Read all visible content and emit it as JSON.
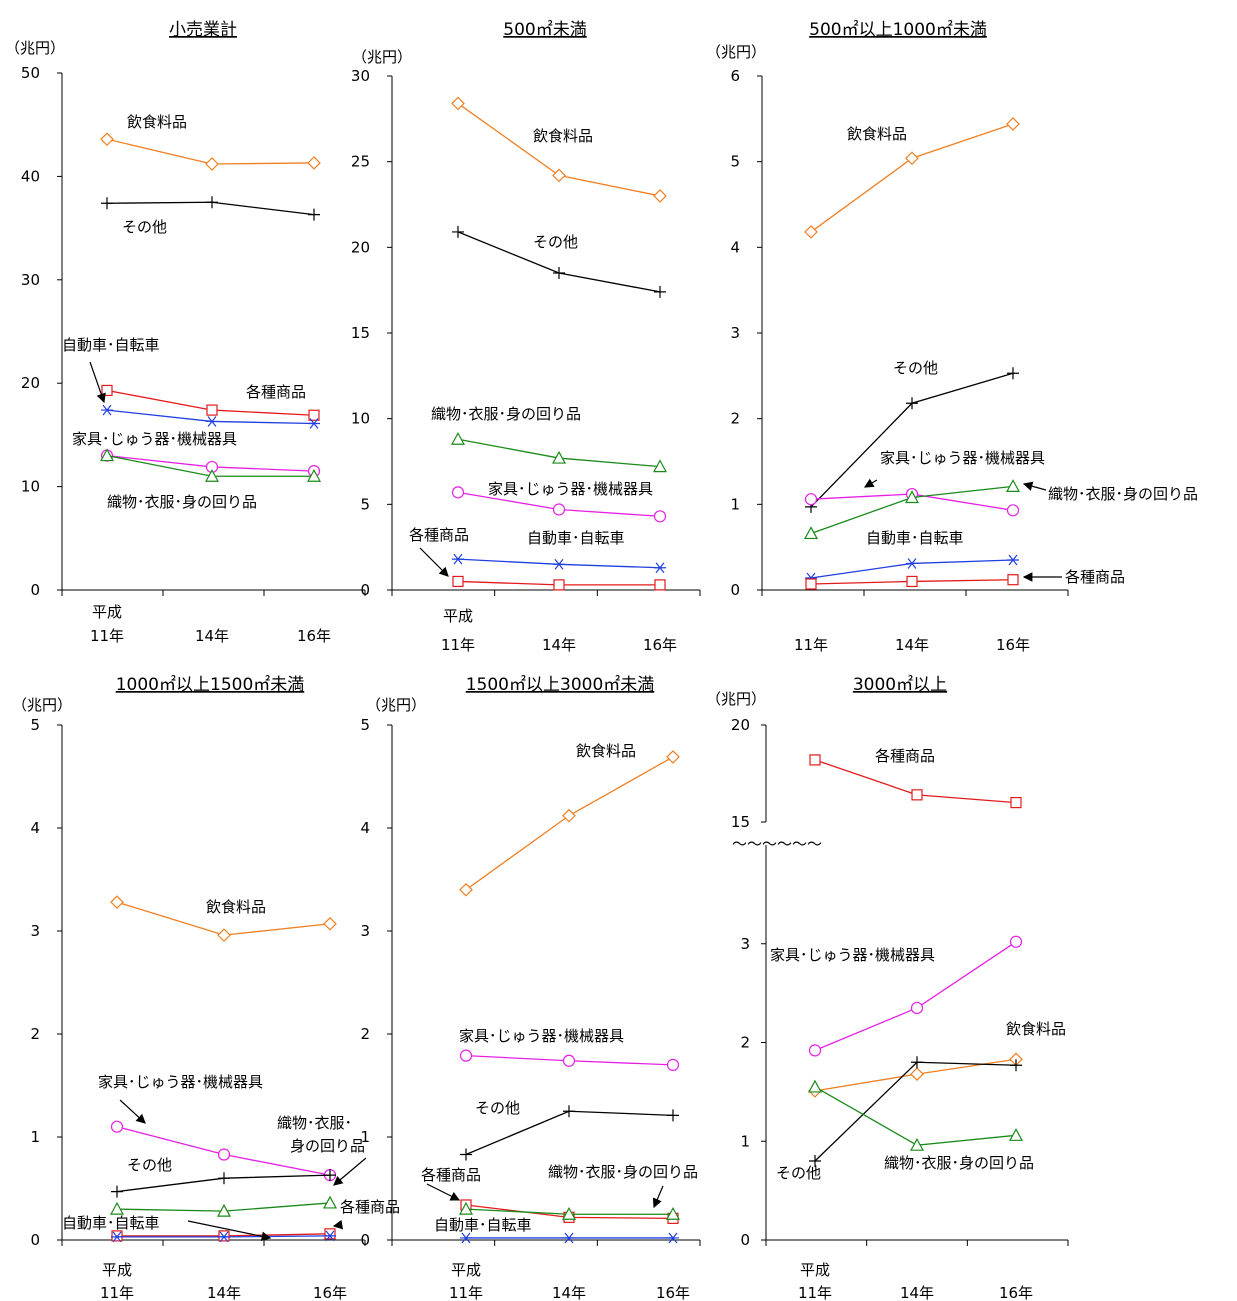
{
  "colors": {
    "食料": "#f07f22",
    "その他": "#000000",
    "各種": "#e31a1c",
    "自動車": "#1f3fe0",
    "家具": "#e520e5",
    "織物": "#1a8a1a"
  },
  "markers": {
    "食料": "diamond",
    "その他": "plus",
    "各種": "square",
    "自動車": "asterisk",
    "家具": "circle",
    "織物": "triangle"
  },
  "chart_data": [
    {
      "type": "line",
      "title": "小売業計",
      "unit": "（兆円）",
      "categories": [
        "平成\n11年",
        "14年",
        "16年"
      ],
      "ylim": [
        0,
        50
      ],
      "yticks": [
        "0",
        "10",
        "20",
        "30",
        "40",
        "50"
      ],
      "series": [
        {
          "key": "食料",
          "values": [
            43.6,
            41.2,
            41.3
          ]
        },
        {
          "key": "その他",
          "values": [
            37.4,
            37.5,
            36.3
          ]
        },
        {
          "key": "各種",
          "values": [
            19.3,
            17.4,
            16.9
          ]
        },
        {
          "key": "自動車",
          "values": [
            17.4,
            16.3,
            16.1
          ]
        },
        {
          "key": "家具",
          "values": [
            13.0,
            11.9,
            11.5
          ]
        },
        {
          "key": "織物",
          "values": [
            13.0,
            11.0,
            11.0
          ]
        }
      ],
      "labels": [
        {
          "text": "飲食料品"
        },
        {
          "text": "その他"
        },
        {
          "text": "自動車･自転車"
        },
        {
          "text": "各種商品"
        },
        {
          "text": "家具･じゅう器･機械器具"
        },
        {
          "text": "織物･衣服･身の回り品"
        }
      ]
    },
    {
      "type": "line",
      "title": "500㎡未満",
      "unit": "（兆円）",
      "categories": [
        "平成\n11年",
        "14年",
        "16年"
      ],
      "ylim": [
        0,
        30
      ],
      "yticks": [
        "0",
        "5",
        "10",
        "15",
        "20",
        "25",
        "30"
      ],
      "series": [
        {
          "key": "食料",
          "values": [
            28.4,
            24.2,
            23.0
          ]
        },
        {
          "key": "その他",
          "values": [
            20.9,
            18.5,
            17.4
          ]
        },
        {
          "key": "織物",
          "values": [
            8.8,
            7.7,
            7.2
          ]
        },
        {
          "key": "家具",
          "values": [
            5.7,
            4.7,
            4.3
          ]
        },
        {
          "key": "自動車",
          "values": [
            1.8,
            1.5,
            1.3
          ]
        },
        {
          "key": "各種",
          "values": [
            0.5,
            0.3,
            0.3
          ]
        }
      ],
      "labels": [
        {
          "text": "飲食料品"
        },
        {
          "text": "その他"
        },
        {
          "text": "織物･衣服･身の回り品"
        },
        {
          "text": "家具･じゅう器･機械器具"
        },
        {
          "text": "自動車･自転車"
        },
        {
          "text": "各種商品"
        }
      ]
    },
    {
      "type": "line",
      "title": "500㎡以上1000㎡未満",
      "unit": "（兆円）",
      "categories": [
        "11年",
        "14年",
        "16年"
      ],
      "ylim": [
        0,
        6
      ],
      "yticks": [
        "0",
        "1",
        "2",
        "3",
        "4",
        "5",
        "6"
      ],
      "series": [
        {
          "key": "食料",
          "values": [
            4.18,
            5.04,
            5.44
          ]
        },
        {
          "key": "その他",
          "values": [
            0.97,
            2.18,
            2.53
          ]
        },
        {
          "key": "家具",
          "values": [
            1.06,
            1.12,
            0.93
          ]
        },
        {
          "key": "織物",
          "values": [
            0.66,
            1.08,
            1.21
          ]
        },
        {
          "key": "自動車",
          "values": [
            0.14,
            0.31,
            0.35
          ]
        },
        {
          "key": "各種",
          "values": [
            0.07,
            0.1,
            0.12
          ]
        }
      ],
      "labels": [
        {
          "text": "飲食料品"
        },
        {
          "text": "その他"
        },
        {
          "text": "家具･じゅう器･機械器具"
        },
        {
          "text": "織物･衣服･身の回り品"
        },
        {
          "text": "自動車･自転車"
        },
        {
          "text": "各種商品"
        }
      ]
    },
    {
      "type": "line",
      "title": "1000㎡以上1500㎡未満",
      "unit": "（兆円）",
      "categories": [
        "平成\n11年",
        "14年",
        "16年"
      ],
      "ylim": [
        0,
        5
      ],
      "yticks": [
        "0",
        "1",
        "2",
        "3",
        "4",
        "5"
      ],
      "series": [
        {
          "key": "食料",
          "values": [
            3.28,
            2.96,
            3.07
          ]
        },
        {
          "key": "家具",
          "values": [
            1.1,
            0.83,
            0.63
          ]
        },
        {
          "key": "その他",
          "values": [
            0.47,
            0.6,
            0.63
          ]
        },
        {
          "key": "織物",
          "values": [
            0.3,
            0.28,
            0.36
          ]
        },
        {
          "key": "各種",
          "values": [
            0.04,
            0.04,
            0.06
          ]
        },
        {
          "key": "自動車",
          "values": [
            0.03,
            0.03,
            0.04
          ]
        }
      ],
      "labels": [
        {
          "text": "飲食料品"
        },
        {
          "text": "家具･じゅう器･機械器具"
        },
        {
          "text": "織物･衣服･"
        },
        {
          "text": "身の回り品"
        },
        {
          "text": "その他"
        },
        {
          "text": "各種商品"
        },
        {
          "text": "自動車･自転車"
        }
      ]
    },
    {
      "type": "line",
      "title": "1500㎡以上3000㎡未満",
      "unit": "（兆円）",
      "categories": [
        "平成\n11年",
        "14年",
        "16年"
      ],
      "ylim": [
        0,
        5
      ],
      "yticks": [
        "0",
        "1",
        "2",
        "3",
        "4",
        "5"
      ],
      "series": [
        {
          "key": "食料",
          "values": [
            3.4,
            4.12,
            4.69
          ]
        },
        {
          "key": "家具",
          "values": [
            1.79,
            1.74,
            1.7
          ]
        },
        {
          "key": "その他",
          "values": [
            0.83,
            1.25,
            1.21
          ]
        },
        {
          "key": "各種",
          "values": [
            0.34,
            0.22,
            0.21
          ]
        },
        {
          "key": "織物",
          "values": [
            0.3,
            0.25,
            0.25
          ]
        },
        {
          "key": "自動車",
          "values": [
            0.02,
            0.02,
            0.02
          ]
        }
      ],
      "labels": [
        {
          "text": "飲食料品"
        },
        {
          "text": "家具･じゅう器･機械器具"
        },
        {
          "text": "その他"
        },
        {
          "text": "各種商品"
        },
        {
          "text": "織物･衣服･身の回り品"
        },
        {
          "text": "自動車･自転車"
        }
      ]
    },
    {
      "type": "line",
      "title": "3000㎡以上",
      "unit": "（兆円）",
      "categories": [
        "平成\n11年",
        "14年",
        "16年"
      ],
      "ylim": [
        0,
        20
      ],
      "axis_break": {
        "lower_max": 4,
        "upper_min": 15,
        "upper_max": 20
      },
      "yticks": [
        "0",
        "1",
        "2",
        "3",
        "15",
        "20"
      ],
      "series": [
        {
          "key": "各種",
          "values": [
            18.2,
            16.4,
            16.0
          ]
        },
        {
          "key": "家具",
          "values": [
            1.92,
            2.35,
            3.02
          ]
        },
        {
          "key": "食料",
          "values": [
            1.51,
            1.68,
            1.83
          ]
        },
        {
          "key": "その他",
          "values": [
            0.8,
            1.8,
            1.77
          ]
        },
        {
          "key": "織物",
          "values": [
            1.55,
            0.96,
            1.06
          ]
        }
      ],
      "labels": [
        {
          "text": "各種商品"
        },
        {
          "text": "家具･じゅう器･機械器具"
        },
        {
          "text": "飲食料品"
        },
        {
          "text": "織物･衣服･身の回り品"
        },
        {
          "text": "その他"
        }
      ],
      "break_mark": "～～～～～～"
    }
  ]
}
